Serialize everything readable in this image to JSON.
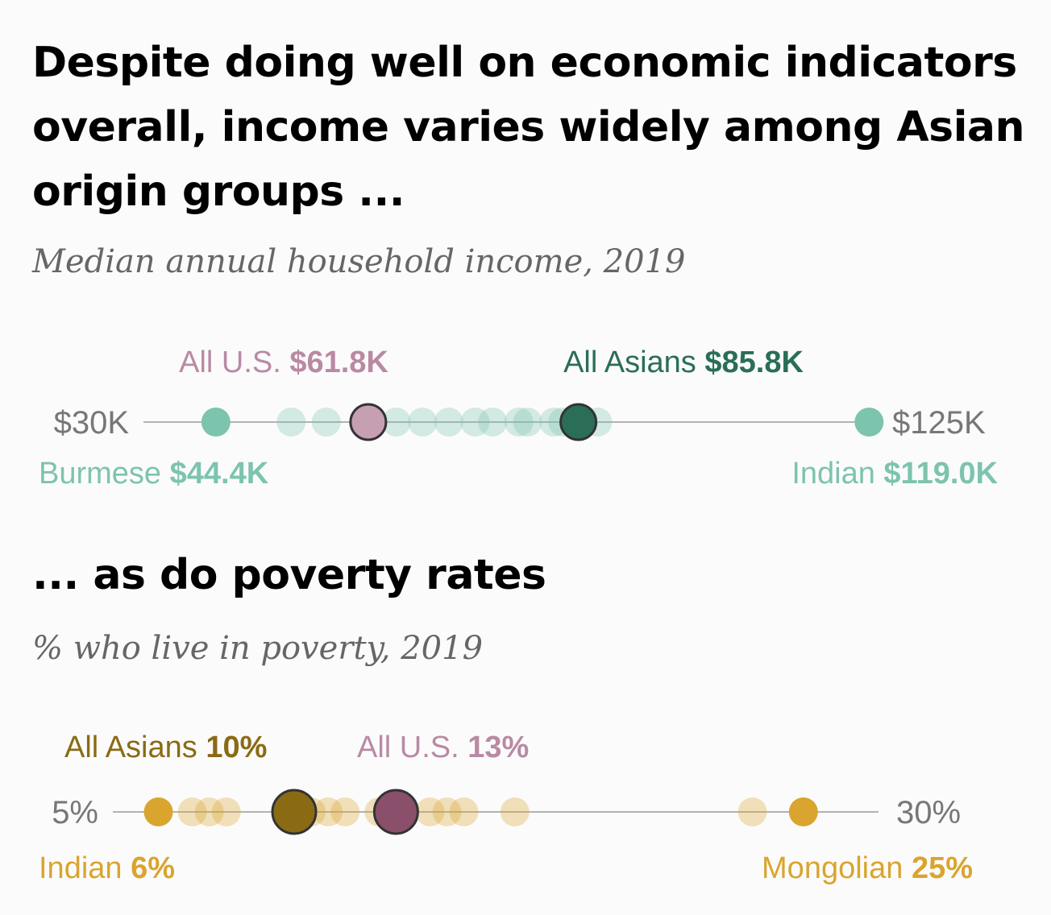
{
  "header": {
    "title": "Despite doing well on economic indicators overall, income varies widely among Asian origin groups ...",
    "subtitle": "Median annual household income, 2019"
  },
  "poverty_header": {
    "title": "... as do poverty rates",
    "subtitle": "% who live in poverty, 2019"
  },
  "colors": {
    "income_group": "#7cc4ae",
    "income_asians": "#2a6e58",
    "us_income": "#c79fb2",
    "us_income_label": "#b98aa3",
    "poverty_group": "#d9a52e",
    "poverty_asians": "#8a6b14",
    "poverty_asians_label": "#8a6b14",
    "us_poverty": "#8a4f6a",
    "us_poverty_label": "#b98aa3",
    "axis": "#999999"
  },
  "chart_data": [
    {
      "type": "scatter",
      "id": "income",
      "title": "Median annual household income, 2019",
      "range_labels": [
        "$30K",
        "$125K"
      ],
      "xlim": [
        30,
        125
      ],
      "x_unit": "thousands of dollars",
      "group_values": [
        44.4,
        53,
        57,
        62,
        65,
        68,
        71,
        74,
        76,
        79,
        80,
        83,
        84,
        88,
        119.0
      ],
      "highlights": [
        {
          "name": "All U.S.",
          "value_label": "$61.8K",
          "value": 61.8,
          "position": "above"
        },
        {
          "name": "All Asians",
          "value_label": "$85.8K",
          "value": 85.8,
          "position": "above"
        },
        {
          "name": "Burmese",
          "value_label": "$44.4K",
          "value": 44.4,
          "position": "below"
        },
        {
          "name": "Indian",
          "value_label": "$119.0K",
          "value": 119.0,
          "position": "below"
        }
      ]
    },
    {
      "type": "scatter",
      "id": "poverty",
      "title": "% who live in poverty, 2019",
      "range_labels": [
        "5%",
        "30%"
      ],
      "xlim": [
        5,
        30
      ],
      "x_unit": "percent",
      "group_values": [
        6,
        7,
        7.5,
        8,
        10.5,
        11,
        11.5,
        12.5,
        14,
        14.5,
        15,
        16.5,
        23.5,
        25
      ],
      "highlights": [
        {
          "name": "All Asians",
          "value_label": "10%",
          "value": 10,
          "position": "above"
        },
        {
          "name": "All U.S.",
          "value_label": "13%",
          "value": 13,
          "position": "above"
        },
        {
          "name": "Indian",
          "value_label": "6%",
          "value": 6,
          "position": "below"
        },
        {
          "name": "Mongolian",
          "value_label": "25%",
          "value": 25,
          "position": "below"
        }
      ]
    }
  ]
}
